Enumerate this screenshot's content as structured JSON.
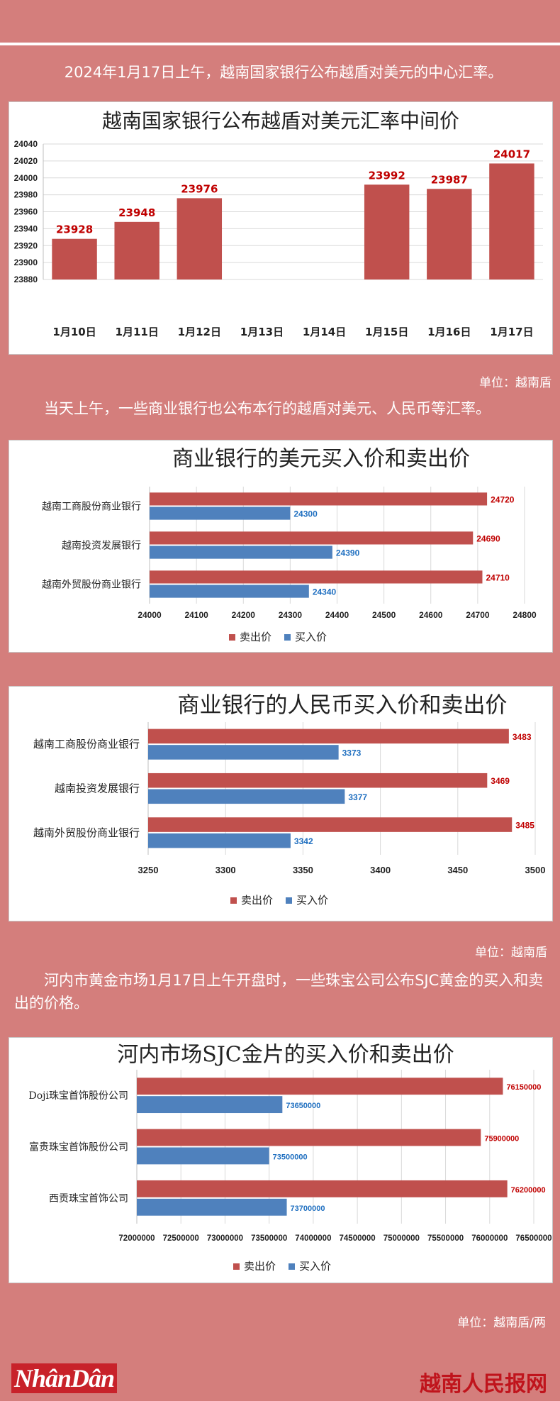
{
  "texts": {
    "intro1": "2024年1月17日上午，越南国家银行公布越盾对美元的中心汇率。",
    "intro2": "当天上午，一些商业银行也公布本行的越盾对美元、人民币等汇率。",
    "intro3": "河内市黄金市场1月17日上午开盘时，一些珠宝公司公布SJC黄金的买入和卖出的价格。",
    "unit1": "单位：越南盾",
    "unit2": "单位：越南盾",
    "unit3": "单位：越南盾/两"
  },
  "footer": {
    "logo": "NhânDân",
    "site": "越南人民报网"
  },
  "colors": {
    "background": "#d47e7c",
    "sell": "#c0504d",
    "buy": "#4f81bd",
    "sell_label": "#c00000",
    "buy_label": "#1f6fc0"
  },
  "chart_data": [
    {
      "type": "bar",
      "title": "越南国家银行公布越盾对美元汇率中间价",
      "categories": [
        "1月10日",
        "1月11日",
        "1月12日",
        "1月13日",
        "1月14日",
        "1月15日",
        "1月16日",
        "1月17日"
      ],
      "values": [
        23928,
        23948,
        23976,
        null,
        null,
        23992,
        23987,
        24017
      ],
      "ylim": [
        23880,
        24040
      ],
      "yticks": [
        23880,
        23900,
        23920,
        23940,
        23960,
        23980,
        24000,
        24020,
        24040
      ],
      "grid": true
    },
    {
      "type": "bar",
      "orientation": "horizontal",
      "title": "商业银行的美元买入价和卖出价",
      "categories": [
        "越南工商股份商业银行",
        "越南投资发展银行",
        "越南外贸股份商业银行"
      ],
      "series": [
        {
          "name": "卖出价",
          "values": [
            24720,
            24690,
            24710
          ]
        },
        {
          "name": "买入价",
          "values": [
            24300,
            24390,
            24340
          ]
        }
      ],
      "xlim": [
        24000,
        24800
      ],
      "xticks": [
        24000,
        24100,
        24200,
        24300,
        24400,
        24500,
        24600,
        24700,
        24800
      ],
      "legend": "bottom"
    },
    {
      "type": "bar",
      "orientation": "horizontal",
      "title": "商业银行的人民币买入价和卖出价",
      "categories": [
        "越南工商股份商业银行",
        "越南投资发展银行",
        "越南外贸股份商业银行"
      ],
      "series": [
        {
          "name": "卖出价",
          "values": [
            3483,
            3469,
            3485
          ]
        },
        {
          "name": "买入价",
          "values": [
            3373,
            3377,
            3342
          ]
        }
      ],
      "xlim": [
        3250,
        3500
      ],
      "xticks": [
        3250,
        3300,
        3350,
        3400,
        3450,
        3500
      ],
      "legend": "bottom"
    },
    {
      "type": "bar",
      "orientation": "horizontal",
      "title": "河内市场SJC金片的买入价和卖出价",
      "categories": [
        "Doji珠宝首饰股份公司",
        "富贵珠宝首饰股份公司",
        "西贡珠宝首饰公司"
      ],
      "series": [
        {
          "name": "卖出价",
          "values": [
            76150000,
            75900000,
            76200000
          ]
        },
        {
          "name": "买入价",
          "values": [
            73650000,
            73500000,
            73700000
          ]
        }
      ],
      "xlim": [
        72000000,
        76500000
      ],
      "xticks": [
        72000000,
        72500000,
        73000000,
        73500000,
        74000000,
        74500000,
        75000000,
        75500000,
        76000000,
        76500000
      ],
      "legend": "bottom"
    }
  ]
}
